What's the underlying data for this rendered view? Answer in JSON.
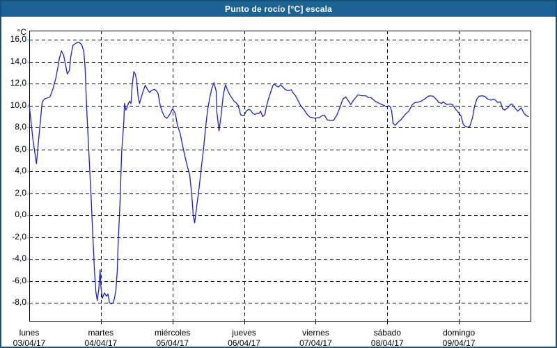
{
  "window": {
    "title": "Punto de rocío [°C] escala"
  },
  "colors": {
    "titlebar_bg": "#1d6295",
    "window_border": "#15527e",
    "plot_background": "#ffffff",
    "plot_border": "#000000",
    "grid": "#000000",
    "axis_mini_tick": "#9fd8e6",
    "text": "#000000",
    "line": "#2121b4"
  },
  "chart_data": {
    "type": "line",
    "title": "Punto de rocío [°C] escala",
    "unit_label": "°C",
    "grid": "dashed",
    "legend": "none",
    "ylim": [
      -9.65,
      16.85
    ],
    "yticks": [
      {
        "value": 16,
        "label": "16,0"
      },
      {
        "value": 14,
        "label": "14,0"
      },
      {
        "value": 12,
        "label": "12,0"
      },
      {
        "value": 10,
        "label": "10,0"
      },
      {
        "value": 8,
        "label": "8,0"
      },
      {
        "value": 6,
        "label": "6,0"
      },
      {
        "value": 4,
        "label": "4,0"
      },
      {
        "value": 2,
        "label": "2,0"
      },
      {
        "value": 0,
        "label": "0,0"
      },
      {
        "value": -2,
        "label": "-2,0"
      },
      {
        "value": -4,
        "label": "-4,0"
      },
      {
        "value": -6,
        "label": "-6,0"
      },
      {
        "value": -8,
        "label": "-8,0"
      }
    ],
    "x_days": [
      {
        "name": "lunes",
        "date": "03/04/17"
      },
      {
        "name": "martes",
        "date": "04/04/17"
      },
      {
        "name": "miércoles",
        "date": "05/04/17"
      },
      {
        "name": "jueves",
        "date": "06/04/17"
      },
      {
        "name": "viernes",
        "date": "07/04/17"
      },
      {
        "name": "sábado",
        "date": "08/04/17"
      },
      {
        "name": "domingo",
        "date": "09/04/17"
      }
    ],
    "series": [
      {
        "name": "Punto de rocío [°C]",
        "color": "#2121b4",
        "points": [
          [
            0,
            10.1
          ],
          [
            0.02,
            8.8
          ],
          [
            0.05,
            7.0
          ],
          [
            0.1,
            4.7
          ],
          [
            0.14,
            7.5
          ],
          [
            0.18,
            10.3
          ],
          [
            0.21,
            10.6
          ],
          [
            0.25,
            10.7
          ],
          [
            0.29,
            10.8
          ],
          [
            0.33,
            11.5
          ],
          [
            0.37,
            12.5
          ],
          [
            0.4,
            13.5
          ],
          [
            0.42,
            14.3
          ],
          [
            0.45,
            15.0
          ],
          [
            0.48,
            14.6
          ],
          [
            0.51,
            13.6
          ],
          [
            0.53,
            12.9
          ],
          [
            0.56,
            13.2
          ],
          [
            0.58,
            14.5
          ],
          [
            0.61,
            15.5
          ],
          [
            0.65,
            15.7
          ],
          [
            0.69,
            15.8
          ],
          [
            0.73,
            15.6
          ],
          [
            0.76,
            15.0
          ],
          [
            0.78,
            13.5
          ],
          [
            0.8,
            10.0
          ],
          [
            0.83,
            6.0
          ],
          [
            0.86,
            2.1
          ],
          [
            0.89,
            -2.1
          ],
          [
            0.91,
            -5.0
          ],
          [
            0.93,
            -7.0
          ],
          [
            0.95,
            -7.8
          ],
          [
            0.97,
            -6.8
          ],
          [
            0.99,
            -5.0
          ],
          [
            1.0,
            -6.5
          ],
          [
            1.02,
            -7.6
          ],
          [
            1.05,
            -7.1
          ],
          [
            1.08,
            -7.4
          ],
          [
            1.1,
            -7.2
          ],
          [
            1.12,
            -8.0
          ],
          [
            1.15,
            -8.1
          ],
          [
            1.17,
            -8.0
          ],
          [
            1.19,
            -7.6
          ],
          [
            1.21,
            -6.8
          ],
          [
            1.23,
            -5.0
          ],
          [
            1.24,
            -2.9
          ],
          [
            1.27,
            1.5
          ],
          [
            1.29,
            5.7
          ],
          [
            1.32,
            8.5
          ],
          [
            1.33,
            10.2
          ],
          [
            1.35,
            9.6
          ],
          [
            1.38,
            10.1
          ],
          [
            1.4,
            10.4
          ],
          [
            1.42,
            10.2
          ],
          [
            1.44,
            12.0
          ],
          [
            1.46,
            13.1
          ],
          [
            1.48,
            12.9
          ],
          [
            1.5,
            12.3
          ],
          [
            1.52,
            10.9
          ],
          [
            1.54,
            10.2
          ],
          [
            1.57,
            10.9
          ],
          [
            1.59,
            11.3
          ],
          [
            1.62,
            11.85
          ],
          [
            1.65,
            11.5
          ],
          [
            1.68,
            11.2
          ],
          [
            1.71,
            11.4
          ],
          [
            1.75,
            11.5
          ],
          [
            1.78,
            11.3
          ],
          [
            1.8,
            11.1
          ],
          [
            1.83,
            10.0
          ],
          [
            1.86,
            9.4
          ],
          [
            1.89,
            9.0
          ],
          [
            1.92,
            8.85
          ],
          [
            1.94,
            9.0
          ],
          [
            1.97,
            9.3
          ],
          [
            2.0,
            9.7
          ],
          [
            2.04,
            9.3
          ],
          [
            2.07,
            8.2
          ],
          [
            2.11,
            7.4
          ],
          [
            2.14,
            6.4
          ],
          [
            2.18,
            5.2
          ],
          [
            2.21,
            4.4
          ],
          [
            2.24,
            3.7
          ],
          [
            2.27,
            1.8
          ],
          [
            2.29,
            0.0
          ],
          [
            2.31,
            -0.7
          ],
          [
            2.34,
            0.9
          ],
          [
            2.37,
            2.4
          ],
          [
            2.4,
            4.2
          ],
          [
            2.43,
            5.8
          ],
          [
            2.46,
            7.8
          ],
          [
            2.49,
            9.6
          ],
          [
            2.52,
            10.7
          ],
          [
            2.55,
            11.6
          ],
          [
            2.58,
            12.1
          ],
          [
            2.61,
            11.3
          ],
          [
            2.62,
            9.4
          ],
          [
            2.65,
            7.7
          ],
          [
            2.68,
            9.2
          ],
          [
            2.71,
            11.0
          ],
          [
            2.74,
            11.9
          ],
          [
            2.77,
            11.4
          ],
          [
            2.8,
            11.0
          ],
          [
            2.83,
            10.7
          ],
          [
            2.86,
            10.4
          ],
          [
            2.89,
            10.25
          ],
          [
            2.92,
            10.0
          ],
          [
            2.95,
            9.2
          ],
          [
            2.97,
            9.1
          ],
          [
            3.0,
            9.1
          ],
          [
            3.03,
            9.5
          ],
          [
            3.06,
            9.65
          ],
          [
            3.09,
            9.6
          ],
          [
            3.12,
            9.3
          ],
          [
            3.15,
            9.2
          ],
          [
            3.18,
            9.3
          ],
          [
            3.21,
            9.3
          ],
          [
            3.23,
            9.5
          ],
          [
            3.26,
            9.0
          ],
          [
            3.29,
            9.2
          ],
          [
            3.31,
            9.9
          ],
          [
            3.34,
            10.6
          ],
          [
            3.37,
            11.2
          ],
          [
            3.4,
            11.8
          ],
          [
            3.42,
            12.0
          ],
          [
            3.45,
            11.8
          ],
          [
            3.48,
            11.7
          ],
          [
            3.51,
            11.9
          ],
          [
            3.54,
            11.7
          ],
          [
            3.57,
            11.5
          ],
          [
            3.6,
            11.4
          ],
          [
            3.63,
            11.4
          ],
          [
            3.66,
            11.45
          ],
          [
            3.68,
            11.2
          ],
          [
            3.72,
            10.9
          ],
          [
            3.75,
            10.5
          ],
          [
            3.79,
            10.0
          ],
          [
            3.84,
            9.6
          ],
          [
            3.88,
            9.2
          ],
          [
            3.92,
            8.95
          ],
          [
            3.96,
            8.9
          ],
          [
            3.99,
            8.85
          ],
          [
            4.02,
            8.9
          ],
          [
            4.05,
            8.9
          ],
          [
            4.09,
            9.1
          ],
          [
            4.12,
            9.15
          ],
          [
            4.16,
            8.7
          ],
          [
            4.2,
            8.65
          ],
          [
            4.25,
            8.65
          ],
          [
            4.3,
            9.2
          ],
          [
            4.35,
            10.05
          ],
          [
            4.38,
            10.6
          ],
          [
            4.42,
            10.8
          ],
          [
            4.46,
            10.4
          ],
          [
            4.49,
            10.1
          ],
          [
            4.53,
            10.5
          ],
          [
            4.59,
            11.0
          ],
          [
            4.64,
            10.9
          ],
          [
            4.7,
            10.9
          ],
          [
            4.73,
            10.75
          ],
          [
            4.77,
            10.75
          ],
          [
            4.83,
            10.4
          ],
          [
            4.89,
            10.2
          ],
          [
            4.96,
            10.0
          ],
          [
            4.99,
            9.9
          ],
          [
            5.02,
            10.0
          ],
          [
            5.04,
            9.9
          ],
          [
            5.06,
            9.5
          ],
          [
            5.08,
            8.4
          ],
          [
            5.11,
            8.2
          ],
          [
            5.15,
            8.5
          ],
          [
            5.19,
            8.7
          ],
          [
            5.25,
            9.2
          ],
          [
            5.3,
            9.5
          ],
          [
            5.35,
            10.1
          ],
          [
            5.39,
            10.3
          ],
          [
            5.42,
            10.3
          ],
          [
            5.47,
            10.4
          ],
          [
            5.52,
            10.6
          ],
          [
            5.57,
            10.85
          ],
          [
            5.6,
            10.9
          ],
          [
            5.64,
            10.85
          ],
          [
            5.68,
            10.6
          ],
          [
            5.72,
            10.3
          ],
          [
            5.76,
            10.2
          ],
          [
            5.78,
            10.35
          ],
          [
            5.83,
            10.1
          ],
          [
            5.88,
            10.15
          ],
          [
            5.91,
            10.1
          ],
          [
            5.95,
            9.7
          ],
          [
            5.99,
            9.4
          ],
          [
            6.03,
            9.05
          ],
          [
            6.06,
            8.3
          ],
          [
            6.09,
            8.1
          ],
          [
            6.12,
            8.05
          ],
          [
            6.15,
            8.1
          ],
          [
            6.19,
            8.9
          ],
          [
            6.22,
            10.0
          ],
          [
            6.25,
            10.6
          ],
          [
            6.28,
            10.85
          ],
          [
            6.32,
            10.9
          ],
          [
            6.36,
            10.85
          ],
          [
            6.4,
            10.6
          ],
          [
            6.45,
            10.5
          ],
          [
            6.48,
            10.6
          ],
          [
            6.51,
            10.5
          ],
          [
            6.54,
            10.3
          ],
          [
            6.58,
            10.35
          ],
          [
            6.61,
            9.7
          ],
          [
            6.64,
            9.6
          ],
          [
            6.68,
            9.8
          ],
          [
            6.72,
            10.1
          ],
          [
            6.74,
            10.15
          ],
          [
            6.78,
            9.8
          ],
          [
            6.82,
            9.5
          ],
          [
            6.84,
            9.6
          ],
          [
            6.87,
            9.8
          ],
          [
            6.91,
            9.3
          ],
          [
            6.94,
            9.1
          ],
          [
            6.97,
            9.0
          ]
        ]
      }
    ]
  }
}
